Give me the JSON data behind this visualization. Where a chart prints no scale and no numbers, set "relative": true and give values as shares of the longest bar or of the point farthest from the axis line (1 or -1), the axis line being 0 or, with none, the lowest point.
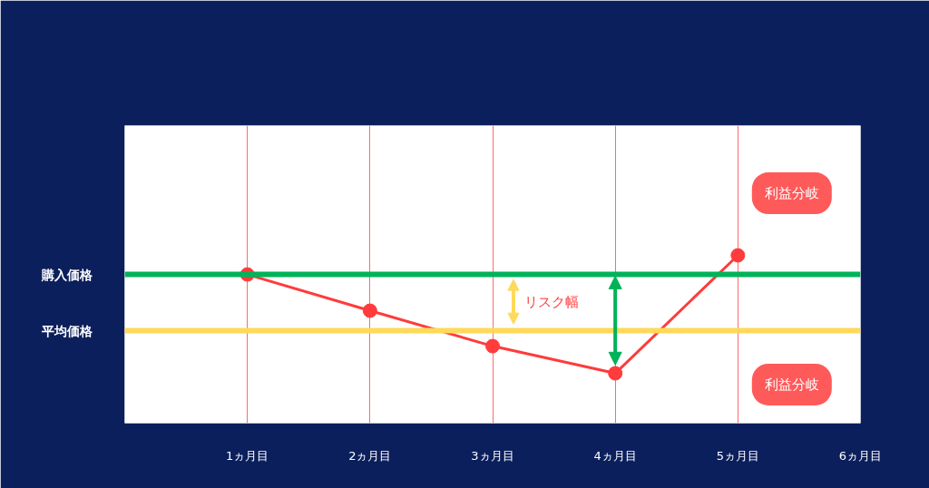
{
  "chart_data": {
    "type": "line",
    "relative": true,
    "categories": [
      "1ヵ月目",
      "2ヵ月目",
      "3ヵ月目",
      "4ヵ月目",
      "5ヵ月目",
      "6ヵ月目"
    ],
    "series": [
      {
        "color": "#ff3b3b",
        "values": [
          0.886,
          0.67,
          0.459,
          0.297,
          1.0,
          null
        ]
      }
    ],
    "marker": "circle",
    "grid": "x",
    "ref_lines": [
      {
        "axis": "y",
        "value": 0.886,
        "label": "購入価格",
        "color": "#00b359"
      },
      {
        "axis": "y",
        "value": 0.551,
        "label": "平均価格",
        "color": "#ffd95a"
      }
    ],
    "annotations": [
      "利益分岐",
      "利益分岐",
      "リスク幅"
    ]
  }
}
